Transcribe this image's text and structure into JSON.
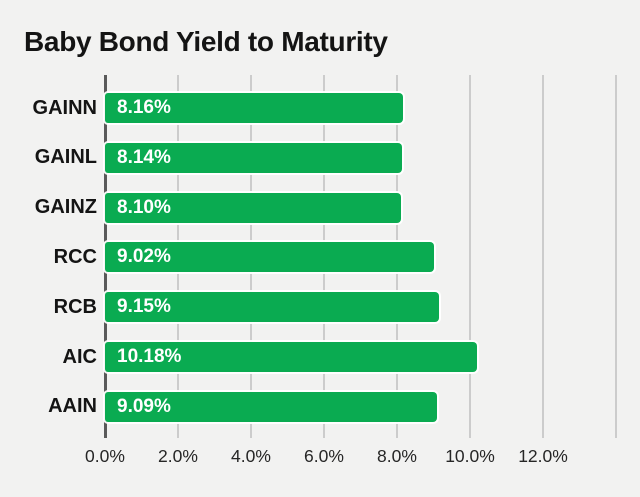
{
  "title": "Baby Bond Yield to Maturity",
  "colors": {
    "background": "#f2f2f1",
    "bar": "#0aab51",
    "bar_outline": "#ffffff",
    "bar_label_text": "#ffffff",
    "grid": "#cccccc",
    "axis_line": "#5a5a5a",
    "title_text": "#141414",
    "category_text": "#141414",
    "tick_text": "#262626"
  },
  "chart_data": {
    "type": "bar",
    "orientation": "horizontal",
    "title": "Baby Bond Yield to Maturity",
    "categories": [
      "GAINN",
      "GAINL",
      "GAINZ",
      "RCC",
      "RCB",
      "AIC",
      "AAIN"
    ],
    "values": [
      8.16,
      8.14,
      8.1,
      9.02,
      9.15,
      10.18,
      9.09
    ],
    "value_labels": [
      "8.16%",
      "8.14%",
      "8.10%",
      "9.02%",
      "9.15%",
      "10.18%",
      "9.09%"
    ],
    "xlabel": "",
    "ylabel": "",
    "x_ticks": [
      "0.0%",
      "2.0%",
      "4.0%",
      "6.0%",
      "8.0%",
      "10.0%",
      "12.0%"
    ],
    "x_tick_values": [
      0,
      2,
      4,
      6,
      8,
      10,
      12
    ],
    "xlim": [
      0,
      14
    ],
    "grid_step": 2,
    "grid": true,
    "legend": false,
    "value_labels_position": "inside-start"
  }
}
